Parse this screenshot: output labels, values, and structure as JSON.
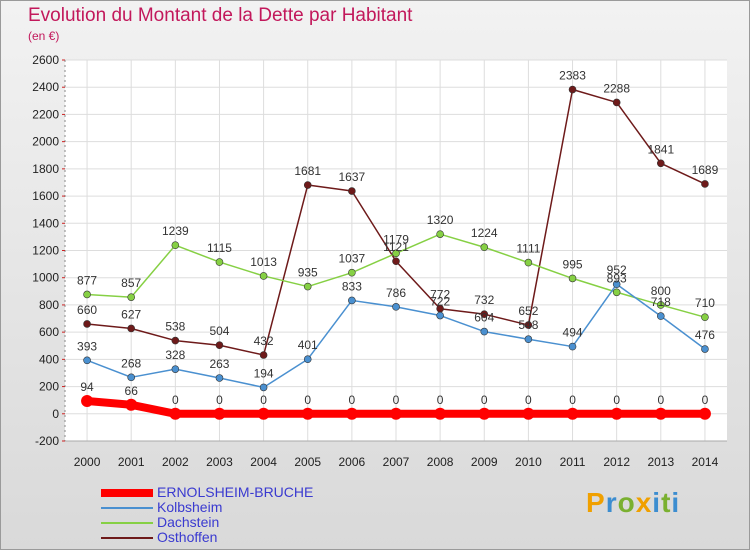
{
  "title": "Evolution du Montant de la Dette par Habitant",
  "subtitle": "(en €)",
  "brand": {
    "letters": [
      "P",
      "r",
      "o",
      "x",
      "i",
      "t",
      "i"
    ],
    "colors": [
      "#f0a000",
      "#3c8dd0",
      "#7ab030",
      "#f0a000",
      "#3c8dd0",
      "#7ab030",
      "#3c8dd0"
    ]
  },
  "chart_data": {
    "type": "line",
    "x": [
      "2000",
      "2001",
      "2002",
      "2003",
      "2004",
      "2005",
      "2006",
      "2007",
      "2008",
      "2009",
      "2010",
      "2011",
      "2012",
      "2013",
      "2014"
    ],
    "ylim": [
      -200,
      2600
    ],
    "yticks": [
      -200,
      0,
      200,
      400,
      600,
      800,
      1000,
      1200,
      1400,
      1600,
      1800,
      2000,
      2200,
      2400,
      2600
    ],
    "grid": true,
    "legend_position": "bottom-left",
    "series": [
      {
        "name": "ERNOLSHEIM-BRUCHE",
        "color": "#ff0000",
        "values": [
          94,
          66,
          0,
          0,
          0,
          0,
          0,
          0,
          0,
          0,
          0,
          0,
          0,
          0,
          0
        ]
      },
      {
        "name": "Kolbsheim",
        "color": "#4a90d0",
        "values": [
          393,
          268,
          328,
          263,
          194,
          401,
          833,
          786,
          722,
          604,
          548,
          494,
          952,
          718,
          476
        ]
      },
      {
        "name": "Dachstein",
        "color": "#86d044",
        "values": [
          877,
          857,
          1239,
          1115,
          1013,
          935,
          1037,
          1179,
          1320,
          1224,
          1111,
          995,
          893,
          800,
          710
        ]
      },
      {
        "name": "Osthoffen",
        "color": "#6e1a1a",
        "values": [
          660,
          627,
          538,
          504,
          432,
          1681,
          1637,
          1121,
          772,
          732,
          652,
          2383,
          2288,
          1841,
          1689
        ]
      }
    ]
  }
}
